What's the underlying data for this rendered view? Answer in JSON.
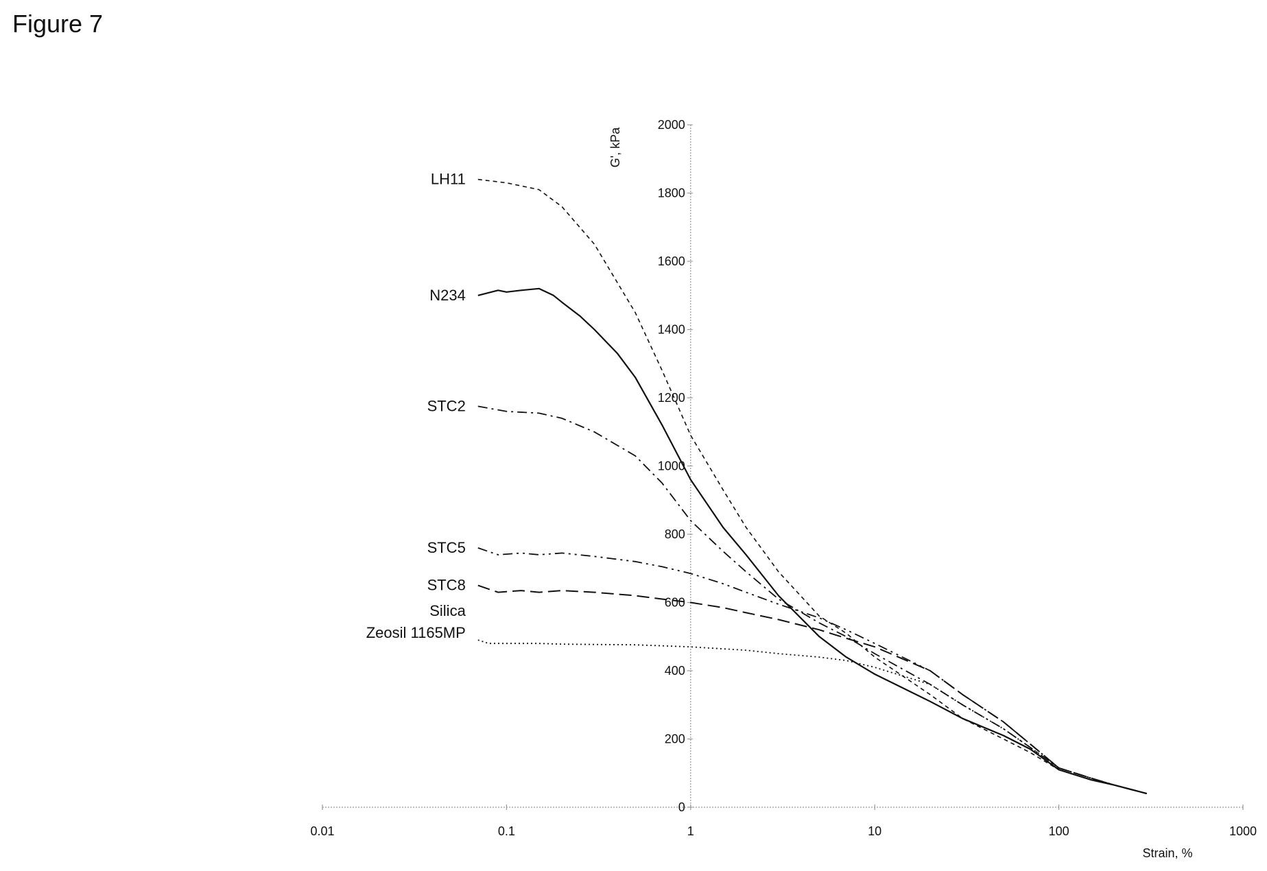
{
  "figure": {
    "title": "Figure 7"
  },
  "chart_data": {
    "type": "line",
    "xscale": "log",
    "xlabel": "Strain, %",
    "ylabel": "G', kPa",
    "xlim": [
      0.01,
      1000
    ],
    "ylim": [
      0,
      2000
    ],
    "xticks": [
      0.01,
      0.1,
      1,
      10,
      100,
      1000
    ],
    "xtick_labels": [
      "0.01",
      "0.1",
      "1",
      "10",
      "100",
      "1000"
    ],
    "yticks": [
      0,
      200,
      400,
      600,
      800,
      1000,
      1200,
      1400,
      1600,
      1800,
      2000
    ],
    "ytick_labels": [
      "0",
      "200",
      "400",
      "600",
      "800",
      "1000",
      "1200",
      "1400",
      "1600",
      "1800",
      "2000"
    ],
    "grid": false,
    "series": [
      {
        "name": "LH11",
        "label_lines": [
          "LH11"
        ],
        "dash": "6,5",
        "stroke_width": 1.6,
        "color": "#111111",
        "x": [
          0.07,
          0.1,
          0.15,
          0.2,
          0.3,
          0.5,
          0.7,
          1,
          1.5,
          2,
          3,
          5,
          7,
          10,
          20,
          30,
          50,
          70,
          100,
          150,
          200,
          300
        ],
        "y": [
          1840,
          1830,
          1810,
          1760,
          1650,
          1450,
          1280,
          1090,
          930,
          820,
          690,
          560,
          510,
          440,
          330,
          260,
          200,
          160,
          110,
          80,
          65,
          40
        ]
      },
      {
        "name": "N234",
        "label_lines": [
          "N234"
        ],
        "dash": "",
        "stroke_width": 2.2,
        "color": "#111111",
        "x": [
          0.07,
          0.09,
          0.1,
          0.12,
          0.15,
          0.18,
          0.2,
          0.25,
          0.3,
          0.4,
          0.5,
          0.7,
          1,
          1.5,
          2,
          3,
          5,
          7,
          10,
          20,
          30,
          50,
          70,
          100,
          150,
          200,
          300
        ],
        "y": [
          1500,
          1515,
          1510,
          1515,
          1520,
          1500,
          1480,
          1440,
          1400,
          1330,
          1260,
          1120,
          960,
          820,
          740,
          620,
          500,
          440,
          390,
          310,
          260,
          210,
          170,
          110,
          80,
          65,
          40
        ]
      },
      {
        "name": "STC2",
        "label_lines": [
          "STC2"
        ],
        "dash": "14,6,3,6",
        "stroke_width": 1.8,
        "color": "#111111",
        "x": [
          0.07,
          0.1,
          0.15,
          0.2,
          0.3,
          0.5,
          0.7,
          1,
          1.5,
          2,
          3,
          5,
          7,
          10,
          20,
          30,
          50,
          70,
          100,
          150,
          200,
          300
        ],
        "y": [
          1175,
          1160,
          1155,
          1140,
          1100,
          1030,
          950,
          840,
          750,
          690,
          610,
          540,
          500,
          450,
          360,
          300,
          230,
          175,
          115,
          85,
          65,
          40
        ]
      },
      {
        "name": "STC5",
        "label_lines": [
          "STC5"
        ],
        "dash": "14,6,3,6,3,6",
        "stroke_width": 1.8,
        "color": "#111111",
        "x": [
          0.07,
          0.09,
          0.12,
          0.15,
          0.2,
          0.3,
          0.5,
          0.7,
          1,
          1.5,
          2,
          3,
          5,
          7,
          10,
          20,
          30,
          50,
          70,
          100,
          150,
          200,
          300
        ],
        "y": [
          760,
          740,
          745,
          740,
          745,
          735,
          720,
          705,
          685,
          655,
          630,
          595,
          555,
          520,
          480,
          400,
          330,
          250,
          185,
          115,
          85,
          65,
          40
        ]
      },
      {
        "name": "STC8",
        "label_lines": [
          "STC8"
        ],
        "dash": "18,8",
        "stroke_width": 2.0,
        "color": "#111111",
        "x": [
          0.07,
          0.09,
          0.12,
          0.15,
          0.2,
          0.3,
          0.5,
          0.7,
          1,
          1.5,
          2,
          3,
          5,
          7,
          10,
          20,
          30,
          50,
          70,
          100,
          150,
          200,
          300
        ],
        "y": [
          650,
          630,
          635,
          630,
          635,
          630,
          620,
          610,
          600,
          585,
          570,
          550,
          520,
          495,
          470,
          400,
          330,
          250,
          185,
          115,
          85,
          65,
          40
        ]
      },
      {
        "name": "Silica Zeosil 1165MP",
        "label_lines": [
          "Silica",
          "Zeosil 1165MP"
        ],
        "dash": "2,4",
        "stroke_width": 1.8,
        "color": "#111111",
        "x": [
          0.07,
          0.08,
          0.1,
          0.15,
          0.2,
          0.3,
          0.5,
          1,
          2,
          3,
          5,
          7,
          10,
          20,
          30,
          50,
          70,
          100,
          150,
          200,
          300
        ],
        "y": [
          490,
          480,
          480,
          480,
          478,
          477,
          476,
          470,
          460,
          450,
          440,
          430,
          410,
          360,
          300,
          230,
          175,
          115,
          85,
          65,
          40
        ]
      }
    ]
  }
}
